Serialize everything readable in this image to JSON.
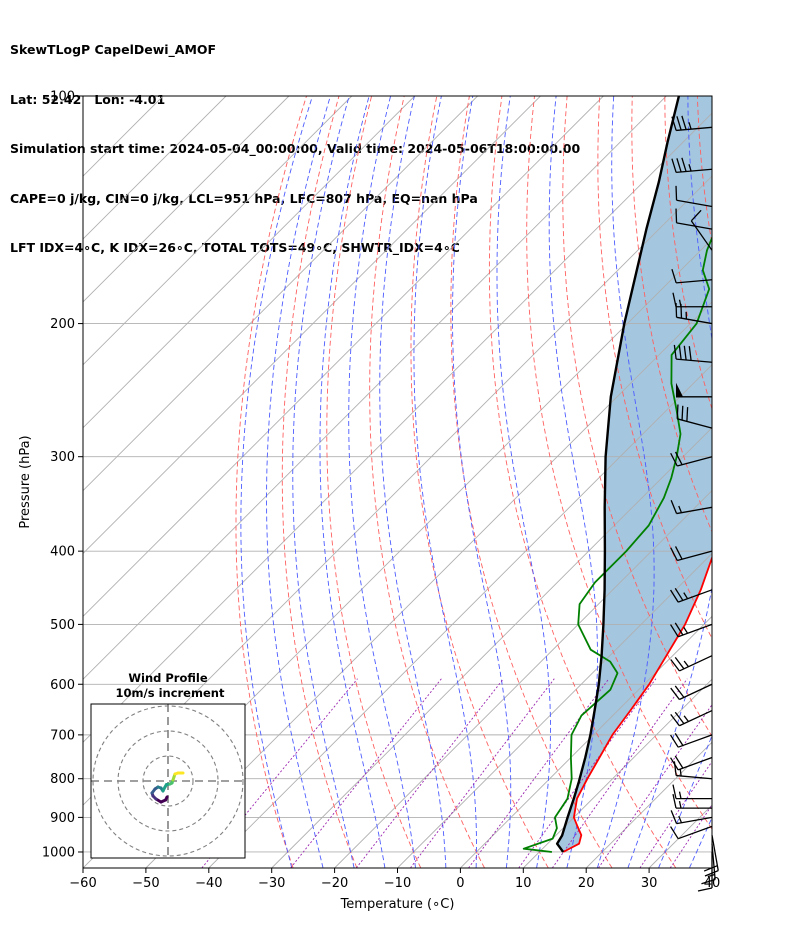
{
  "title_lines": [
    "SkewTLogP CapelDewi_AMOF",
    "Lat: 52.42   Lon: -4.01",
    "Simulation start time: 2024-05-04_00:00:00, Valid time: 2024-05-06T18:00:00.00",
    "CAPE=0 j/kg, CIN=0 j/kg, LCL=951 hPa, LFC=807 hPa, EQ=nan hPa",
    "LFT IDX=4∘C, K IDX=26∘C, TOTAL TOTS=49∘C, SHWTR_IDX=4∘C"
  ],
  "chart_data": {
    "type": "skew-t log-p",
    "xlabel": "Temperature (∘C)",
    "ylabel": "Pressure (hPa)",
    "xlim": [
      -60,
      40
    ],
    "ylim": [
      1050,
      100
    ],
    "x_ticks": [
      -60,
      -50,
      -40,
      -30,
      -20,
      -10,
      0,
      10,
      20,
      30,
      40
    ],
    "x_tick_labels": [
      "−60",
      "−50",
      "−40",
      "−30",
      "−20",
      "−10",
      "0",
      "10",
      "20",
      "30",
      "40"
    ],
    "y_ticks": [
      1000,
      900,
      800,
      700,
      600,
      500,
      400,
      300,
      200,
      100
    ],
    "grid": true,
    "series": [
      {
        "key": "temperature",
        "color": "#ff0000",
        "points": [
          [
            1000,
            13.8
          ],
          [
            975,
            15.0
          ],
          [
            950,
            14.0
          ],
          [
            925,
            12.0
          ],
          [
            900,
            10.0
          ],
          [
            850,
            7.5
          ],
          [
            800,
            6.0
          ],
          [
            700,
            3.0
          ],
          [
            650,
            2.0
          ],
          [
            600,
            0.8
          ],
          [
            550,
            -1.0
          ],
          [
            500,
            -3.0
          ],
          [
            450,
            -6.0
          ],
          [
            400,
            -10.0
          ],
          [
            350,
            -14.5
          ],
          [
            300,
            -20.0
          ],
          [
            270,
            -24.5
          ],
          [
            250,
            -28.0
          ],
          [
            240,
            -30.0
          ],
          [
            225,
            -31.0
          ],
          [
            210,
            -31.5
          ],
          [
            190,
            -31.5
          ],
          [
            175,
            -32.0
          ],
          [
            160,
            -33.0
          ],
          [
            150,
            -34.0
          ],
          [
            140,
            -36.5
          ],
          [
            130,
            -40.0
          ],
          [
            120,
            -43.5
          ],
          [
            110,
            -47.0
          ],
          [
            100,
            -51.0
          ]
        ]
      },
      {
        "key": "dewpoint",
        "color": "#008000",
        "points": [
          [
            1000,
            12.0
          ],
          [
            990,
            7.0
          ],
          [
            960,
            10.0
          ],
          [
            930,
            9.0
          ],
          [
            900,
            7.0
          ],
          [
            850,
            6.0
          ],
          [
            800,
            3.5
          ],
          [
            750,
            0.0
          ],
          [
            700,
            -3.5
          ],
          [
            660,
            -5.0
          ],
          [
            610,
            -4.5
          ],
          [
            580,
            -6.0
          ],
          [
            560,
            -9.0
          ],
          [
            540,
            -14.0
          ],
          [
            500,
            -20.0
          ],
          [
            470,
            -23.0
          ],
          [
            440,
            -24.0
          ],
          [
            400,
            -24.0
          ],
          [
            370,
            -24.5
          ],
          [
            340,
            -26.5
          ],
          [
            320,
            -28.5
          ],
          [
            300,
            -31.0
          ],
          [
            280,
            -34.0
          ],
          [
            260,
            -38.5
          ],
          [
            240,
            -43.5
          ],
          [
            220,
            -48.0
          ],
          [
            200,
            -49.0
          ],
          [
            180,
            -52.5
          ],
          [
            170,
            -56.5
          ],
          [
            160,
            -59.0
          ],
          [
            150,
            -61.0
          ],
          [
            140,
            -63.0
          ],
          [
            130,
            -66.0
          ],
          [
            120,
            -69.0
          ],
          [
            110,
            -73.0
          ],
          [
            100,
            -77.0
          ]
        ]
      },
      {
        "key": "parcel",
        "color": "#000000",
        "points": [
          [
            1000,
            13.8
          ],
          [
            975,
            11.5
          ],
          [
            951,
            11.0
          ],
          [
            900,
            9.0
          ],
          [
            850,
            7.0
          ],
          [
            807,
            5.1
          ],
          [
            750,
            2.3
          ],
          [
            700,
            -0.5
          ],
          [
            650,
            -3.7
          ],
          [
            600,
            -7.2
          ],
          [
            550,
            -11.3
          ],
          [
            500,
            -16.0
          ],
          [
            450,
            -21.3
          ],
          [
            400,
            -27.4
          ],
          [
            350,
            -34.4
          ],
          [
            300,
            -42.3
          ],
          [
            250,
            -51.0
          ],
          [
            200,
            -60.5
          ],
          [
            170,
            -67.0
          ],
          [
            150,
            -72.0
          ],
          [
            130,
            -77.5
          ],
          [
            115,
            -82.5
          ],
          [
            100,
            -88.0
          ]
        ]
      }
    ],
    "wind_barbs": [
      [
        1000,
        180,
        10
      ],
      [
        975,
        175,
        15
      ],
      [
        950,
        170,
        20
      ],
      [
        925,
        250,
        10
      ],
      [
        900,
        260,
        15
      ],
      [
        875,
        270,
        15
      ],
      [
        850,
        270,
        15
      ],
      [
        800,
        275,
        15
      ],
      [
        750,
        250,
        20
      ],
      [
        700,
        250,
        20
      ],
      [
        650,
        245,
        25
      ],
      [
        600,
        245,
        20
      ],
      [
        550,
        245,
        25
      ],
      [
        500,
        250,
        25
      ],
      [
        450,
        250,
        25
      ],
      [
        400,
        255,
        20
      ],
      [
        350,
        260,
        15
      ],
      [
        300,
        255,
        20
      ],
      [
        275,
        285,
        30
      ],
      [
        250,
        270,
        50
      ],
      [
        225,
        275,
        40
      ],
      [
        200,
        280,
        25
      ],
      [
        190,
        270,
        15
      ],
      [
        175,
        265,
        10
      ],
      [
        160,
        325,
        10
      ],
      [
        150,
        280,
        10
      ],
      [
        140,
        280,
        10
      ],
      [
        125,
        265,
        35
      ],
      [
        110,
        265,
        35
      ]
    ],
    "hodograph": {
      "title": "Wind Profile",
      "subtitle": "10m/s increment",
      "rings_ms": [
        10,
        20,
        30
      ],
      "points": [
        [
          -0.5,
          -8.0
        ],
        [
          -1.2,
          -9.5
        ],
        [
          -3.5,
          -10.5
        ],
        [
          -6.0,
          -9.0
        ],
        [
          -7.5,
          -7.5
        ],
        [
          -8.0,
          -6.0
        ],
        [
          -6.5,
          -4.0
        ],
        [
          -5.0,
          -3.0
        ],
        [
          -3.5,
          -3.5
        ],
        [
          -2.5,
          -5.0
        ],
        [
          -1.5,
          -3.0
        ],
        [
          -0.8,
          -1.8
        ],
        [
          1.0,
          -1.5
        ],
        [
          2.0,
          -1.0
        ],
        [
          2.5,
          0.5
        ],
        [
          3.0,
          2.0
        ],
        [
          3.5,
          3.5
        ],
        [
          5.0,
          4.0
        ],
        [
          7.5,
          4.0
        ]
      ]
    }
  }
}
